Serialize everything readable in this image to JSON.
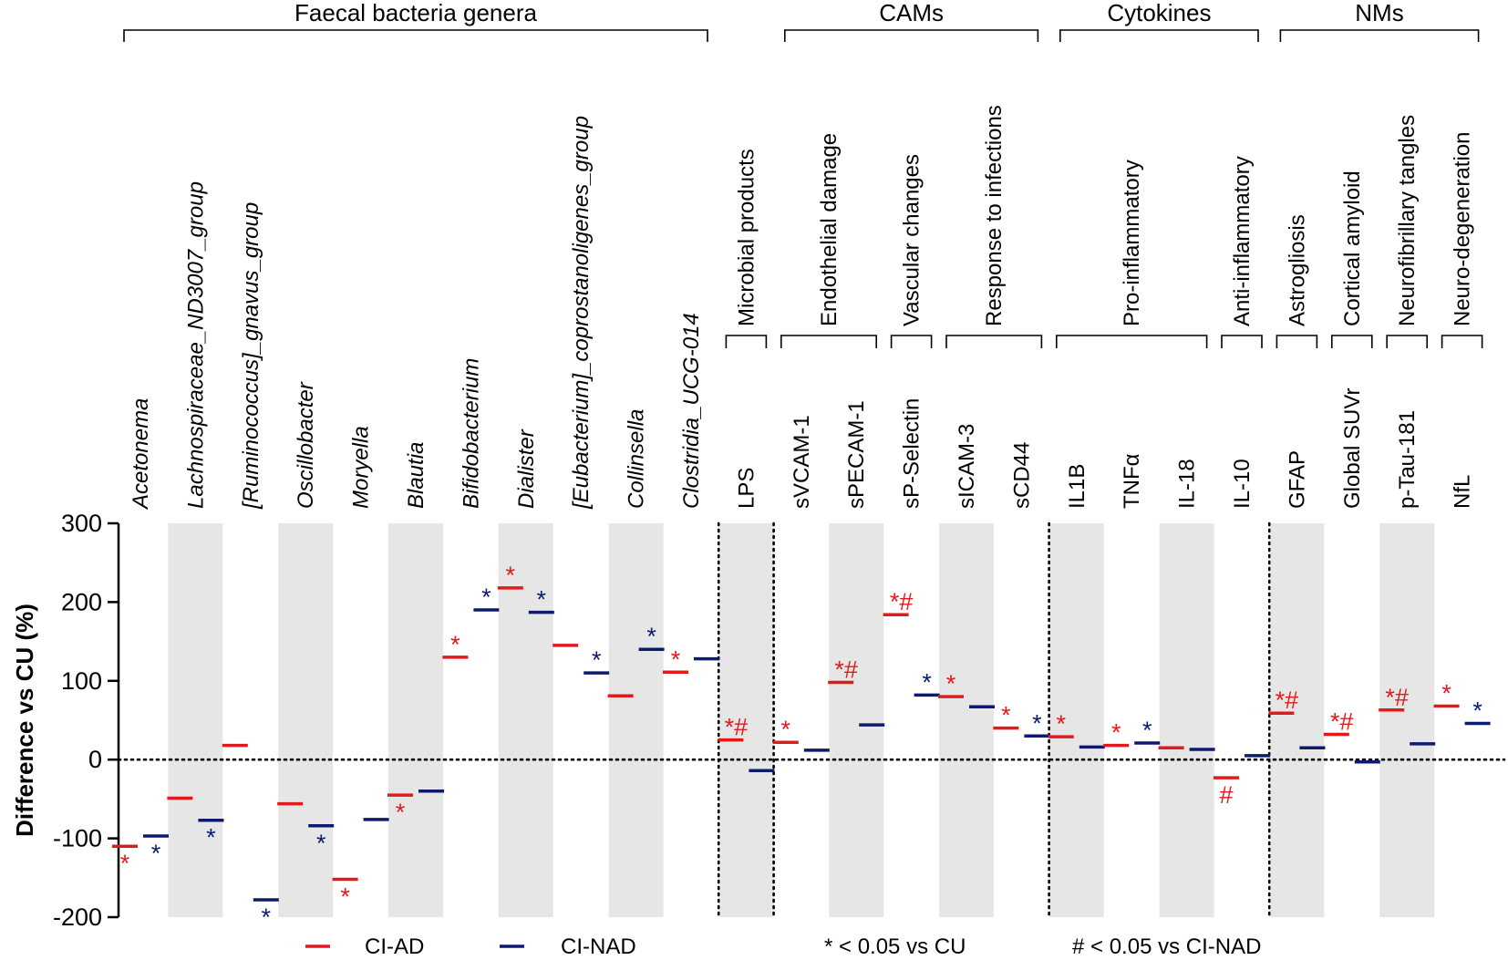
{
  "chart_data": {
    "type": "scatter",
    "ylabel": "Difference vs CU (%)",
    "ylim": [
      -200,
      300
    ],
    "yticks": [
      -200,
      -100,
      0,
      100,
      200,
      300
    ],
    "zero_reference_line": true,
    "series": [
      {
        "name": "CI-AD",
        "color": "#e31a1c"
      },
      {
        "name": "CI-NAD",
        "color": "#0d1b6e"
      }
    ],
    "groups": [
      {
        "label": "Faecal bacteria genera",
        "first": 0,
        "last": 10
      },
      {
        "label": "CAMs",
        "first": 12,
        "last": 16
      },
      {
        "label": "Cytokines",
        "first": 17,
        "last": 20
      },
      {
        "label": "NMs",
        "first": 21,
        "last": 24
      }
    ],
    "functions": [
      {
        "label": "Microbial products",
        "first": 11,
        "last": 11
      },
      {
        "label": "Endothelial damage",
        "first": 12,
        "last": 13
      },
      {
        "label": "Vascular changes",
        "first": 14,
        "last": 14
      },
      {
        "label": "Response to infections",
        "first": 15,
        "last": 16
      },
      {
        "label": "Pro-inflammatory",
        "first": 17,
        "last": 19
      },
      {
        "label": "Anti-inflammatory",
        "first": 20,
        "last": 20
      },
      {
        "label": "Astrogliosis",
        "first": 21,
        "last": 21
      },
      {
        "label": "Cortical amyloid",
        "first": 22,
        "last": 22
      },
      {
        "label": "Neurofibrillary tangles",
        "first": 23,
        "last": 23
      },
      {
        "label": "Neuro-degeneration",
        "first": 24,
        "last": 24
      }
    ],
    "separators_after": [
      10,
      11,
      16,
      20
    ],
    "categories": [
      {
        "name": "Acetonema",
        "italic": true,
        "ci_ad": -110,
        "ci_nad": -97,
        "ad_sig": "*",
        "nad_sig": "*"
      },
      {
        "name": "Lachnospiraceae_ND3007_group",
        "italic": true,
        "ci_ad": -49,
        "ci_nad": -77,
        "ad_sig": "",
        "nad_sig": "*"
      },
      {
        "name": "[Ruminococcus]_gnavus_group",
        "italic": true,
        "ci_ad": 18,
        "ci_nad": -178,
        "ad_sig": "",
        "nad_sig": "*"
      },
      {
        "name": "Oscillobacter",
        "italic": true,
        "ci_ad": -56,
        "ci_nad": -84,
        "ad_sig": "",
        "nad_sig": "*"
      },
      {
        "name": "Moryella",
        "italic": true,
        "ci_ad": -152,
        "ci_nad": -76,
        "ad_sig": "*",
        "nad_sig": ""
      },
      {
        "name": "Blautia",
        "italic": true,
        "ci_ad": -45,
        "ci_nad": -40,
        "ad_sig": "*",
        "nad_sig": ""
      },
      {
        "name": "Bifidobacterium",
        "italic": true,
        "ci_ad": 130,
        "ci_nad": 190,
        "ad_sig": "*",
        "nad_sig": "*"
      },
      {
        "name": "Dialister",
        "italic": true,
        "ci_ad": 218,
        "ci_nad": 187,
        "ad_sig": "*",
        "nad_sig": "*"
      },
      {
        "name": "[Eubacterium]_coprostanoligenes_group",
        "italic": true,
        "ci_ad": 145,
        "ci_nad": 110,
        "ad_sig": "",
        "nad_sig": "*"
      },
      {
        "name": "Collinsella",
        "italic": true,
        "ci_ad": 81,
        "ci_nad": 140,
        "ad_sig": "",
        "nad_sig": "*"
      },
      {
        "name": "Clostridia_UCG-014",
        "italic": true,
        "ci_ad": 111,
        "ci_nad": 128,
        "ad_sig": "*",
        "nad_sig": ""
      },
      {
        "name": "LPS",
        "italic": false,
        "ci_ad": 25,
        "ci_nad": -14,
        "ad_sig": "*#",
        "nad_sig": ""
      },
      {
        "name": "sVCAM-1",
        "italic": false,
        "ci_ad": 22,
        "ci_nad": 12,
        "ad_sig": "*",
        "nad_sig": ""
      },
      {
        "name": "sPECAM-1",
        "italic": false,
        "ci_ad": 98,
        "ci_nad": 44,
        "ad_sig": "*#",
        "nad_sig": ""
      },
      {
        "name": "sP-Selectin",
        "italic": false,
        "ci_ad": 184,
        "ci_nad": 82,
        "ad_sig": "*#",
        "nad_sig": "*"
      },
      {
        "name": "sICAM-3",
        "italic": false,
        "ci_ad": 80,
        "ci_nad": 67,
        "ad_sig": "*",
        "nad_sig": ""
      },
      {
        "name": "sCD44",
        "italic": false,
        "ci_ad": 40,
        "ci_nad": 30,
        "ad_sig": "*",
        "nad_sig": "*"
      },
      {
        "name": "IL1B",
        "italic": false,
        "ci_ad": 29,
        "ci_nad": 16,
        "ad_sig": "*",
        "nad_sig": ""
      },
      {
        "name": "TNFα",
        "italic": false,
        "ci_ad": 18,
        "ci_nad": 21,
        "ad_sig": "*",
        "nad_sig": "*"
      },
      {
        "name": "IL-18",
        "italic": false,
        "ci_ad": 15,
        "ci_nad": 13,
        "ad_sig": "",
        "nad_sig": ""
      },
      {
        "name": "IL-10",
        "italic": false,
        "ci_ad": -23,
        "ci_nad": 5,
        "ad_sig": "#",
        "nad_sig": ""
      },
      {
        "name": "GFAP",
        "italic": false,
        "ci_ad": 59,
        "ci_nad": 15,
        "ad_sig": "*#",
        "nad_sig": ""
      },
      {
        "name": "Global SUVr",
        "italic": false,
        "ci_ad": 32,
        "ci_nad": -3,
        "ad_sig": "*#",
        "nad_sig": ""
      },
      {
        "name": "p-Tau-181",
        "italic": false,
        "ci_ad": 63,
        "ci_nad": 20,
        "ad_sig": "*#",
        "nad_sig": ""
      },
      {
        "name": "NfL",
        "italic": false,
        "ci_ad": 68,
        "ci_nad": 46,
        "ad_sig": "*",
        "nad_sig": "*"
      }
    ],
    "legend": {
      "entries": [
        "CI-AD",
        "CI-NAD"
      ],
      "notes": [
        "* < 0.05 vs CU",
        "# < 0.05 vs CI-NAD"
      ],
      "placement": "bottom"
    }
  }
}
